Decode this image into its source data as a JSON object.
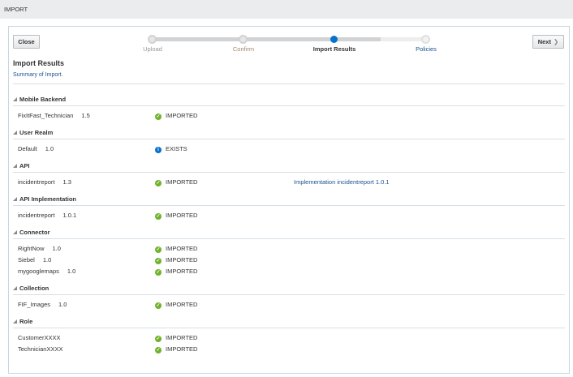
{
  "header": {
    "title": "IMPORT"
  },
  "toolbar": {
    "close_label": "Close",
    "next_label": "Next",
    "next_icon": "chevron-right-icon"
  },
  "stepper": {
    "steps": [
      {
        "label": "Upload",
        "state": "done"
      },
      {
        "label": "Confirm",
        "state": "done"
      },
      {
        "label": "Import Results",
        "state": "current"
      },
      {
        "label": "Policies",
        "state": "todo"
      }
    ],
    "active_color": "#0572ce"
  },
  "page": {
    "title": "Import Results",
    "summary": "Summary of Import."
  },
  "sections": [
    {
      "title": "Mobile Backend",
      "rows": [
        {
          "name": "FixItFast_Technician",
          "version": "1.5",
          "status": "IMPORTED",
          "icon": "check-circle-icon"
        }
      ]
    },
    {
      "title": "User Realm",
      "rows": [
        {
          "name": "Default",
          "version": "1.0",
          "status": "EXISTS",
          "icon": "info-icon"
        }
      ]
    },
    {
      "title": "API",
      "rows": [
        {
          "name": "incidentreport",
          "version": "1.3",
          "status": "IMPORTED",
          "icon": "check-circle-icon",
          "extra": "Implementation incidentreport 1.0.1"
        }
      ]
    },
    {
      "title": "API Implementation",
      "rows": [
        {
          "name": "incidentreport",
          "version": "1.0.1",
          "status": "IMPORTED",
          "icon": "check-circle-icon"
        }
      ]
    },
    {
      "title": "Connector",
      "rows": [
        {
          "name": "RightNow",
          "version": "1.0",
          "status": "IMPORTED",
          "icon": "check-circle-icon"
        },
        {
          "name": "Siebel",
          "version": "1.0",
          "status": "IMPORTED",
          "icon": "check-circle-icon"
        },
        {
          "name": "mygooglemaps",
          "version": "1.0",
          "status": "IMPORTED",
          "icon": "check-circle-icon"
        }
      ]
    },
    {
      "title": "Collection",
      "rows": [
        {
          "name": "FIF_Images",
          "version": "1.0",
          "status": "IMPORTED",
          "icon": "check-circle-icon"
        }
      ]
    },
    {
      "title": "Role",
      "rows": [
        {
          "name": "CustomerXXXX",
          "version": "",
          "status": "IMPORTED",
          "icon": "check-circle-icon"
        },
        {
          "name": "TechnicianXXXX",
          "version": "",
          "status": "IMPORTED",
          "icon": "check-circle-icon"
        }
      ]
    }
  ]
}
